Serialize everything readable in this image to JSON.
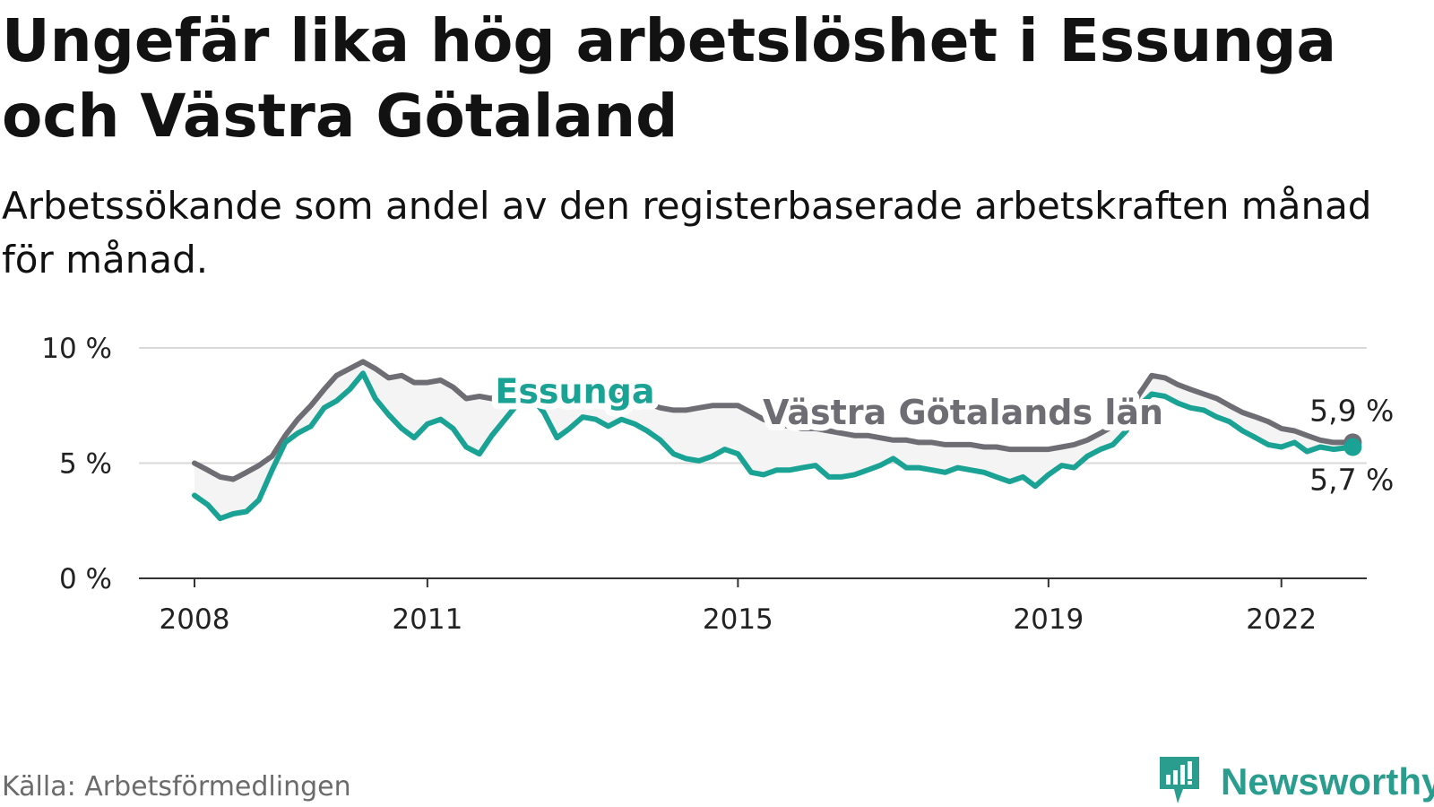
{
  "title": "Ungefär lika hög arbetslöshet i Essunga och Västra Götaland",
  "subtitle": "Arbetssökande som andel av den registerbaserade arbetskraften månad för månad.",
  "source": "Källa: Arbetsförmedlingen",
  "brand": "Newsworthy",
  "colors": {
    "essunga": "#1aa394",
    "region": "#6e6d74",
    "band": "#f4f4f4",
    "grid": "#d9d9d9",
    "axis": "#333333",
    "brand": "#2a9d8f"
  },
  "chart_data": {
    "type": "line",
    "xlim": [
      2008,
      2023.1
    ],
    "ylim": [
      0,
      10
    ],
    "y_ticks": [
      {
        "value": 0,
        "label": "0 %"
      },
      {
        "value": 5,
        "label": "5 %"
      },
      {
        "value": 10,
        "label": "10 %"
      }
    ],
    "x_ticks": [
      {
        "value": 2008,
        "label": "2008"
      },
      {
        "value": 2011,
        "label": "2011"
      },
      {
        "value": 2015,
        "label": "2015"
      },
      {
        "value": 2019,
        "label": "2019"
      },
      {
        "value": 2022,
        "label": "2022"
      }
    ],
    "series": [
      {
        "name": "Västra Götalands län",
        "key": "region",
        "label": "Västra Götalands län",
        "label_at": [
          2017.9,
          6.7
        ],
        "end_label": "5,9 %",
        "x": [
          2008,
          2008.17,
          2008.33,
          2008.5,
          2008.67,
          2008.83,
          2009,
          2009.17,
          2009.33,
          2009.5,
          2009.67,
          2009.83,
          2010,
          2010.17,
          2010.33,
          2010.5,
          2010.67,
          2010.83,
          2011,
          2011.17,
          2011.33,
          2011.5,
          2011.67,
          2011.83,
          2012,
          2012.17,
          2012.33,
          2012.5,
          2012.67,
          2012.83,
          2013,
          2013.17,
          2013.33,
          2013.5,
          2013.67,
          2013.83,
          2014,
          2014.17,
          2014.33,
          2014.5,
          2014.67,
          2014.83,
          2015,
          2015.17,
          2015.33,
          2015.5,
          2015.67,
          2015.83,
          2016,
          2016.17,
          2016.33,
          2016.5,
          2016.67,
          2016.83,
          2017,
          2017.17,
          2017.33,
          2017.5,
          2017.67,
          2017.83,
          2018,
          2018.17,
          2018.33,
          2018.5,
          2018.67,
          2018.83,
          2019,
          2019.17,
          2019.33,
          2019.5,
          2019.67,
          2019.83,
          2020,
          2020.17,
          2020.33,
          2020.5,
          2020.67,
          2020.83,
          2021,
          2021.17,
          2021.33,
          2021.5,
          2021.67,
          2021.83,
          2022,
          2022.17,
          2022.33,
          2022.5,
          2022.67,
          2022.92
        ],
        "values": [
          5.0,
          4.7,
          4.4,
          4.3,
          4.6,
          4.9,
          5.3,
          6.2,
          6.9,
          7.5,
          8.2,
          8.8,
          9.1,
          9.4,
          9.1,
          8.7,
          8.8,
          8.5,
          8.5,
          8.6,
          8.3,
          7.8,
          7.9,
          7.8,
          8.2,
          8.4,
          8.5,
          8.4,
          8.2,
          8.3,
          8.5,
          8.3,
          8.1,
          8.0,
          7.8,
          7.6,
          7.4,
          7.3,
          7.3,
          7.4,
          7.5,
          7.5,
          7.5,
          7.2,
          6.9,
          6.7,
          6.6,
          6.5,
          6.5,
          6.4,
          6.3,
          6.2,
          6.2,
          6.1,
          6.0,
          6.0,
          5.9,
          5.9,
          5.8,
          5.8,
          5.8,
          5.7,
          5.7,
          5.6,
          5.6,
          5.6,
          5.6,
          5.7,
          5.8,
          6.0,
          6.3,
          6.6,
          7.0,
          8.0,
          8.8,
          8.7,
          8.4,
          8.2,
          8.0,
          7.8,
          7.5,
          7.2,
          7.0,
          6.8,
          6.5,
          6.4,
          6.2,
          6.0,
          5.9,
          5.9
        ]
      },
      {
        "name": "Essunga",
        "key": "essunga",
        "label": "Essunga",
        "label_at": [
          2012.9,
          7.6
        ],
        "end_label": "5,7 %",
        "x": [
          2008,
          2008.17,
          2008.33,
          2008.5,
          2008.67,
          2008.83,
          2009,
          2009.17,
          2009.33,
          2009.5,
          2009.67,
          2009.83,
          2010,
          2010.17,
          2010.33,
          2010.5,
          2010.67,
          2010.83,
          2011,
          2011.17,
          2011.33,
          2011.5,
          2011.67,
          2011.83,
          2012,
          2012.17,
          2012.33,
          2012.5,
          2012.67,
          2012.83,
          2013,
          2013.17,
          2013.33,
          2013.5,
          2013.67,
          2013.83,
          2014,
          2014.17,
          2014.33,
          2014.5,
          2014.67,
          2014.83,
          2015,
          2015.17,
          2015.33,
          2015.5,
          2015.67,
          2015.83,
          2016,
          2016.17,
          2016.33,
          2016.5,
          2016.67,
          2016.83,
          2017,
          2017.17,
          2017.33,
          2017.5,
          2017.67,
          2017.83,
          2018,
          2018.17,
          2018.33,
          2018.5,
          2018.67,
          2018.83,
          2019,
          2019.17,
          2019.33,
          2019.5,
          2019.67,
          2019.83,
          2020,
          2020.17,
          2020.33,
          2020.5,
          2020.67,
          2020.83,
          2021,
          2021.17,
          2021.33,
          2021.5,
          2021.67,
          2021.83,
          2022,
          2022.17,
          2022.33,
          2022.5,
          2022.67,
          2022.92
        ],
        "values": [
          3.6,
          3.2,
          2.6,
          2.8,
          2.9,
          3.4,
          4.7,
          5.9,
          6.3,
          6.6,
          7.4,
          7.7,
          8.2,
          8.9,
          7.8,
          7.1,
          6.5,
          6.1,
          6.7,
          6.9,
          6.5,
          5.7,
          5.4,
          6.2,
          6.9,
          7.6,
          7.9,
          7.2,
          6.1,
          6.5,
          7.0,
          6.9,
          6.6,
          6.9,
          6.7,
          6.4,
          6.0,
          5.4,
          5.2,
          5.1,
          5.3,
          5.6,
          5.4,
          4.6,
          4.5,
          4.7,
          4.7,
          4.8,
          4.9,
          4.4,
          4.4,
          4.5,
          4.7,
          4.9,
          5.2,
          4.8,
          4.8,
          4.7,
          4.6,
          4.8,
          4.7,
          4.6,
          4.4,
          4.2,
          4.4,
          4.0,
          4.5,
          4.9,
          4.8,
          5.3,
          5.6,
          5.8,
          6.4,
          7.5,
          8.0,
          7.9,
          7.6,
          7.4,
          7.3,
          7.0,
          6.8,
          6.4,
          6.1,
          5.8,
          5.7,
          5.9,
          5.5,
          5.7,
          5.6,
          5.7
        ]
      }
    ]
  }
}
